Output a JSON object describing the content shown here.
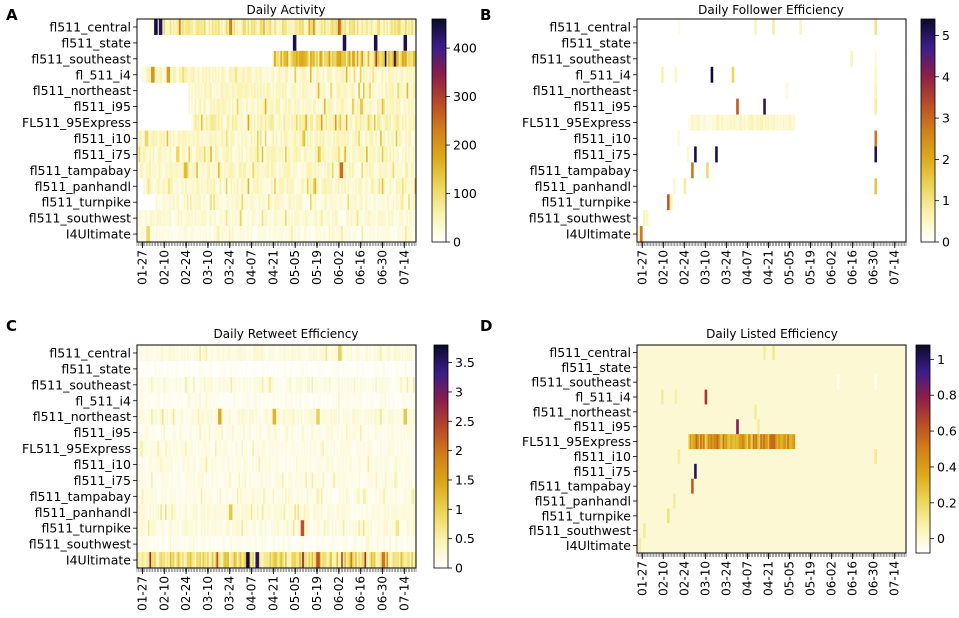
{
  "figure": {
    "panel_letters": [
      "A",
      "B",
      "C",
      "D"
    ],
    "colormap": [
      "#ffffff",
      "#faf3b0",
      "#ecd55a",
      "#dcaa1a",
      "#d1801a",
      "#b84a28",
      "#8a1e4a",
      "#3a1d8a",
      "#0a0a2a"
    ]
  },
  "chart_data": [
    {
      "type": "heatmap",
      "panel": "A",
      "title": "Daily Activity",
      "rows": [
        "fl511_central",
        "fl511_state",
        "fl511_southeast",
        "fl_511_i4",
        "fl511_northeast",
        "fl511_i95",
        "FL511_95Express",
        "fl511_i10",
        "fl511_i75",
        "fl511_tampabay",
        "fl511_panhandl",
        "fl511_turnpike",
        "fl511_southwest",
        "I4Ultimate"
      ],
      "x_ticks": [
        "01-27",
        "02-10",
        "02-24",
        "03-10",
        "03-24",
        "04-07",
        "04-21",
        "05-05",
        "05-19",
        "06-02",
        "06-16",
        "06-30",
        "07-14"
      ],
      "colorbar": {
        "min": 0,
        "max": 460,
        "ticks": [
          0,
          100,
          200,
          300,
          400
        ]
      },
      "row_summary": [
        {
          "row": "fl511_central",
          "start": "02-03",
          "typical": 70,
          "peaks": [
            {
              "date": "02-04",
              "value": 450
            },
            {
              "date": "02-07",
              "value": 430
            }
          ]
        },
        {
          "row": "fl511_state",
          "start": "05-03",
          "typical": 0,
          "peaks": [
            {
              "date": "05-04",
              "value": 440
            },
            {
              "date": "06-05",
              "value": 440
            },
            {
              "date": "06-25",
              "value": 440
            },
            {
              "date": "07-14",
              "value": 440
            }
          ]
        },
        {
          "row": "fl511_southeast",
          "start": "04-21",
          "typical": 130,
          "peaks": []
        },
        {
          "row": "fl_511_i4",
          "start": "01-27",
          "typical": 40,
          "peaks": [
            {
              "date": "02-02",
              "value": 200
            },
            {
              "date": "02-12",
              "value": 190
            }
          ]
        },
        {
          "row": "fl511_northeast",
          "start": "02-26",
          "typical": 40,
          "peaks": []
        },
        {
          "row": "fl511_i95",
          "start": "02-26",
          "typical": 40,
          "peaks": []
        },
        {
          "row": "FL511_95Express",
          "start": "02-28",
          "typical": 50,
          "peaks": []
        },
        {
          "row": "fl511_i10",
          "start": "01-25",
          "typical": 40,
          "peaks": [
            {
              "date": "01-29",
              "value": 110
            }
          ]
        },
        {
          "row": "fl511_i75",
          "start": "01-25",
          "typical": 40,
          "peaks": [
            {
              "date": "02-18",
              "value": 110
            }
          ]
        },
        {
          "row": "fl511_tampabay",
          "start": "01-25",
          "typical": 40,
          "peaks": [
            {
              "date": "06-03",
              "value": 250
            }
          ]
        },
        {
          "row": "fl511_panhandl",
          "start": "01-28",
          "typical": 40,
          "peaks": []
        },
        {
          "row": "fl511_turnpike",
          "start": "02-05",
          "typical": 30,
          "peaks": []
        },
        {
          "row": "fl511_southwest",
          "start": "01-25",
          "typical": 30,
          "peaks": []
        },
        {
          "row": "I4Ultimate",
          "start": "01-25",
          "typical": 20,
          "peaks": [
            {
              "date": "01-30",
              "value": 110
            }
          ]
        }
      ]
    },
    {
      "type": "heatmap",
      "panel": "B",
      "title": "Daily Follower Efficiency",
      "rows": [
        "fl511_central",
        "fl511_state",
        "fl511_southeast",
        "fl_511_i4",
        "fl511_northeast",
        "fl511_i95",
        "FL511_95Express",
        "fl511_i10",
        "fl511_i75",
        "fl511_tampabay",
        "fl511_panhandl",
        "fl511_turnpike",
        "fl511_southwest",
        "I4Ultimate"
      ],
      "x_ticks": [
        "01-27",
        "02-10",
        "02-24",
        "03-10",
        "03-24",
        "04-07",
        "04-21",
        "05-05",
        "05-19",
        "06-02",
        "06-16",
        "06-30",
        "07-14"
      ],
      "colorbar": {
        "min": 0,
        "max": 5.4,
        "ticks": [
          0,
          1,
          2,
          3,
          4,
          5
        ]
      },
      "band": {
        "row": "FL511_95Express",
        "start": "02-27",
        "end": "05-08",
        "value": 0.4
      },
      "cells": [
        {
          "row": "fl511_central",
          "date": "02-20",
          "value": 0.2
        },
        {
          "row": "fl511_central",
          "date": "04-12",
          "value": 0.6
        },
        {
          "row": "fl511_central",
          "date": "04-24",
          "value": 0.8
        },
        {
          "row": "fl511_central",
          "date": "05-12",
          "value": 0.5
        },
        {
          "row": "fl511_central",
          "date": "07-01",
          "value": 1.0
        },
        {
          "row": "fl511_southeast",
          "date": "06-15",
          "value": 0.6
        },
        {
          "row": "fl511_southeast",
          "date": "07-01",
          "value": 0.3
        },
        {
          "row": "fl_511_i4",
          "date": "02-09",
          "value": 0.7
        },
        {
          "row": "fl_511_i4",
          "date": "02-18",
          "value": 0.5
        },
        {
          "row": "fl_511_i4",
          "date": "03-14",
          "value": 5.3
        },
        {
          "row": "fl_511_i4",
          "date": "03-28",
          "value": 1.3
        },
        {
          "row": "fl_511_i4",
          "date": "07-01",
          "value": 0.5
        },
        {
          "row": "fl511_northeast",
          "date": "05-03",
          "value": 0.3
        },
        {
          "row": "fl511_northeast",
          "date": "07-01",
          "value": 0.6
        },
        {
          "row": "fl511_i95",
          "date": "03-31",
          "value": 3.2
        },
        {
          "row": "fl511_i95",
          "date": "04-18",
          "value": 5.0
        },
        {
          "row": "fl511_i95",
          "date": "07-01",
          "value": 0.8
        },
        {
          "row": "fl511_i10",
          "date": "02-20",
          "value": 0.3
        },
        {
          "row": "fl511_i10",
          "date": "07-01",
          "value": 2.8
        },
        {
          "row": "fl511_i75",
          "date": "03-03",
          "value": 5.2
        },
        {
          "row": "fl511_i75",
          "date": "03-17",
          "value": 5.2
        },
        {
          "row": "fl511_i75",
          "date": "02-26",
          "value": 0.4
        },
        {
          "row": "fl511_i75",
          "date": "07-01",
          "value": 5.1
        },
        {
          "row": "fl511_tampabay",
          "date": "03-01",
          "value": 2.8
        },
        {
          "row": "fl511_tampabay",
          "date": "03-11",
          "value": 1.2
        },
        {
          "row": "fl511_panhandl",
          "date": "02-17",
          "value": 0.4
        },
        {
          "row": "fl511_panhandl",
          "date": "02-24",
          "value": 0.8
        },
        {
          "row": "fl511_panhandl",
          "date": "07-01",
          "value": 1.6
        },
        {
          "row": "fl511_turnpike",
          "date": "02-13",
          "value": 3.2
        },
        {
          "row": "fl511_turnpike",
          "date": "02-15",
          "value": 0.6
        },
        {
          "row": "fl511_southwest",
          "date": "01-28",
          "value": 0.6
        },
        {
          "row": "fl511_southwest",
          "date": "01-30",
          "value": 0.5
        },
        {
          "row": "I4Ultimate",
          "date": "01-25",
          "value": 0.8
        },
        {
          "row": "I4Ultimate",
          "date": "01-26",
          "value": 2.8
        }
      ]
    },
    {
      "type": "heatmap",
      "panel": "C",
      "title": "Daily Retweet Efficiency",
      "rows": [
        "fl511_central",
        "fl511_state",
        "fl511_southeast",
        "fl_511_i4",
        "fl511_northeast",
        "fl511_i95",
        "FL511_95Express",
        "fl511_i10",
        "fl511_i75",
        "fl511_tampabay",
        "fl511_panhandl",
        "fl511_turnpike",
        "fl511_southwest",
        "I4Ultimate"
      ],
      "x_ticks": [
        "01-27",
        "02-10",
        "02-24",
        "03-10",
        "03-24",
        "04-07",
        "04-21",
        "05-05",
        "05-19",
        "06-02",
        "06-16",
        "06-30",
        "07-14"
      ],
      "colorbar": {
        "min": 0,
        "max": 3.8,
        "ticks": [
          0.0,
          0.5,
          1.0,
          1.5,
          2.0,
          2.5,
          3.0,
          3.5
        ]
      },
      "row_summary": [
        {
          "row": "fl511_central",
          "typical": 0.2,
          "peaks": [
            {
              "date": "06-02",
              "value": 1.0
            }
          ]
        },
        {
          "row": "fl511_state",
          "typical": 0.05,
          "peaks": []
        },
        {
          "row": "fl511_southeast",
          "typical": 0.15,
          "peaks": []
        },
        {
          "row": "fl_511_i4",
          "typical": 0.1,
          "peaks": []
        },
        {
          "row": "fl511_northeast",
          "typical": 0.2,
          "peaks": [
            {
              "date": "03-17",
              "value": 1.4
            },
            {
              "date": "04-21",
              "value": 1.3
            },
            {
              "date": "05-19",
              "value": 1.0
            },
            {
              "date": "07-14",
              "value": 1.1
            }
          ]
        },
        {
          "row": "fl511_i95",
          "typical": 0.15,
          "peaks": []
        },
        {
          "row": "FL511_95Express",
          "typical": 0.15,
          "peaks": []
        },
        {
          "row": "fl511_i10",
          "typical": 0.15,
          "peaks": []
        },
        {
          "row": "fl511_i75",
          "typical": 0.15,
          "peaks": []
        },
        {
          "row": "fl511_tampabay",
          "typical": 0.15,
          "peaks": []
        },
        {
          "row": "fl511_panhandl",
          "typical": 0.2,
          "peaks": [
            {
              "date": "03-24",
              "value": 1.1
            }
          ]
        },
        {
          "row": "fl511_turnpike",
          "typical": 0.2,
          "peaks": [
            {
              "date": "05-09",
              "value": 2.3
            }
          ]
        },
        {
          "row": "fl511_southwest",
          "typical": 0.1,
          "peaks": []
        },
        {
          "row": "I4Ultimate",
          "typical": 0.8,
          "peaks": [
            {
              "date": "04-04",
              "value": 3.7
            },
            {
              "date": "04-10",
              "value": 3.5
            },
            {
              "date": "05-19",
              "value": 2.3
            },
            {
              "date": "06-30",
              "value": 2.0
            }
          ]
        }
      ]
    },
    {
      "type": "heatmap",
      "panel": "D",
      "title": "Daily Listed Efficiency",
      "rows": [
        "fl511_central",
        "fl511_state",
        "fl511_southeast",
        "fl_511_i4",
        "fl511_northeast",
        "fl511_i95",
        "FL511_95Express",
        "fl511_i10",
        "fl511_i75",
        "fl511_tampabay",
        "fl511_panhandl",
        "fl511_turnpike",
        "fl511_southwest",
        "I4Ultimate"
      ],
      "x_ticks": [
        "01-27",
        "02-10",
        "02-24",
        "03-10",
        "03-24",
        "04-07",
        "04-21",
        "05-05",
        "05-19",
        "06-02",
        "06-16",
        "06-30",
        "07-14"
      ],
      "colorbar": {
        "min": -0.08,
        "max": 1.08,
        "ticks": [
          -0.0,
          0.2,
          0.4,
          0.6,
          0.8,
          1.0
        ]
      },
      "background_value": 0.0,
      "band": {
        "row": "FL511_95Express",
        "start": "02-27",
        "end": "05-08",
        "value": 0.35
      },
      "cells": [
        {
          "row": "fl511_central",
          "date": "04-18",
          "value": 0.1
        },
        {
          "row": "fl511_central",
          "date": "04-24",
          "value": 0.12
        },
        {
          "row": "fl511_southeast",
          "date": "06-06",
          "value": -0.05
        },
        {
          "row": "fl511_southeast",
          "date": "07-01",
          "value": -0.05
        },
        {
          "row": "fl_511_i4",
          "date": "02-09",
          "value": 0.1
        },
        {
          "row": "fl_511_i4",
          "date": "02-18",
          "value": 0.08
        },
        {
          "row": "fl_511_i4",
          "date": "03-10",
          "value": 0.7
        },
        {
          "row": "fl511_northeast",
          "date": "04-12",
          "value": 0.1
        },
        {
          "row": "fl511_i95",
          "date": "03-31",
          "value": 0.8
        },
        {
          "row": "fl511_i95",
          "date": "04-14",
          "value": 0.1
        },
        {
          "row": "fl511_i10",
          "date": "02-20",
          "value": 0.1
        },
        {
          "row": "fl511_i10",
          "date": "07-01",
          "value": 0.12
        },
        {
          "row": "fl511_i75",
          "date": "03-03",
          "value": 1.0
        },
        {
          "row": "fl511_tampabay",
          "date": "03-01",
          "value": 0.6
        },
        {
          "row": "fl511_panhandl",
          "date": "02-17",
          "value": 0.1
        },
        {
          "row": "fl511_turnpike",
          "date": "02-13",
          "value": 0.15
        },
        {
          "row": "fl511_southwest",
          "date": "01-28",
          "value": 0.1
        },
        {
          "row": "I4Ultimate",
          "date": "01-25",
          "value": 0.1
        }
      ]
    }
  ]
}
